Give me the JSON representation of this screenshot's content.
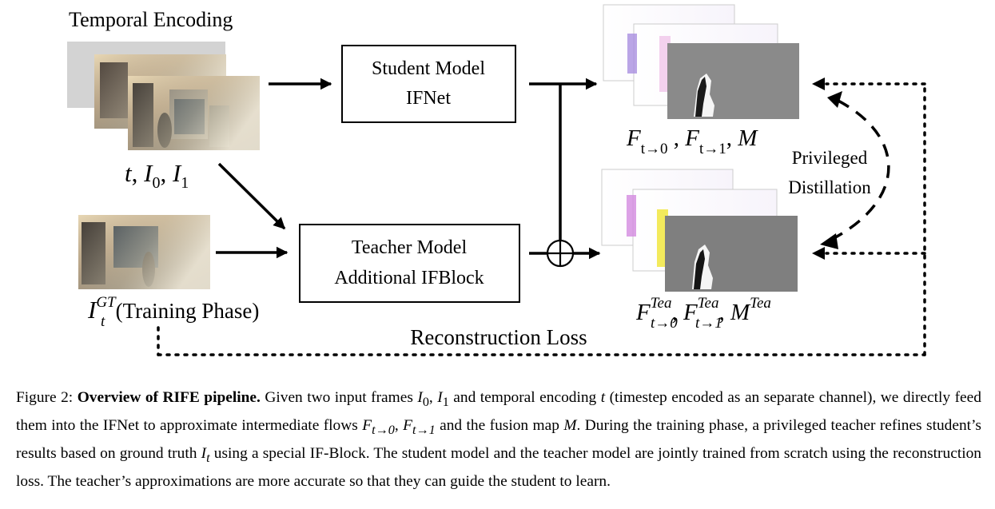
{
  "diagram": {
    "temporal_encoding": "Temporal Encoding",
    "input_label": {
      "t": "t",
      "i0": "I",
      "i0_sub": "0",
      "i1": "I",
      "i1_sub": "1"
    },
    "student": {
      "line1": "Student Model",
      "line2": "IFNet"
    },
    "teacher": {
      "line1": "Teacher Model",
      "line2": "Additional IFBlock"
    },
    "gt_label": {
      "i": "I",
      "sup": "GT",
      "sub": "t",
      "phase": "(Training Phase)"
    },
    "student_output": {
      "f": "F",
      "sub0": "t→0",
      "sub1": "t→1",
      "m": "M"
    },
    "teacher_output": {
      "f": "F",
      "sup": "Tea",
      "sub0": "t→0",
      "sub1": "t→1",
      "m": "M"
    },
    "privileged": {
      "line1": "Privileged",
      "line2": "Distillation"
    },
    "reconstruction_loss": "Reconstruction Loss"
  },
  "caption": {
    "figure_label": "Figure 2:",
    "title": "Overview of RIFE pipeline.",
    "p1": "Given two input frames",
    "i0": "I",
    "i0_sub": "0",
    "i1": "I",
    "i1_sub": "1",
    "p2": "and temporal encoding",
    "t": "t",
    "p3": "(timestep encoded as an separate channel), we directly feed them into the IFNet to approximate intermediate flows",
    "f": "F",
    "f0_sub": "t→0",
    "f1_sub": "t→1",
    "p4": "and the fusion map",
    "m": "M",
    "p5": ". During the training phase, a privileged teacher refines student’s results based on ground truth",
    "it": "I",
    "it_sub": "t",
    "p6": "using a special IF-Block. The student model and the teacher model are jointly trained from scratch using the reconstruction loss. The teacher’s approximations are more accurate so that they can guide the student to learn."
  }
}
